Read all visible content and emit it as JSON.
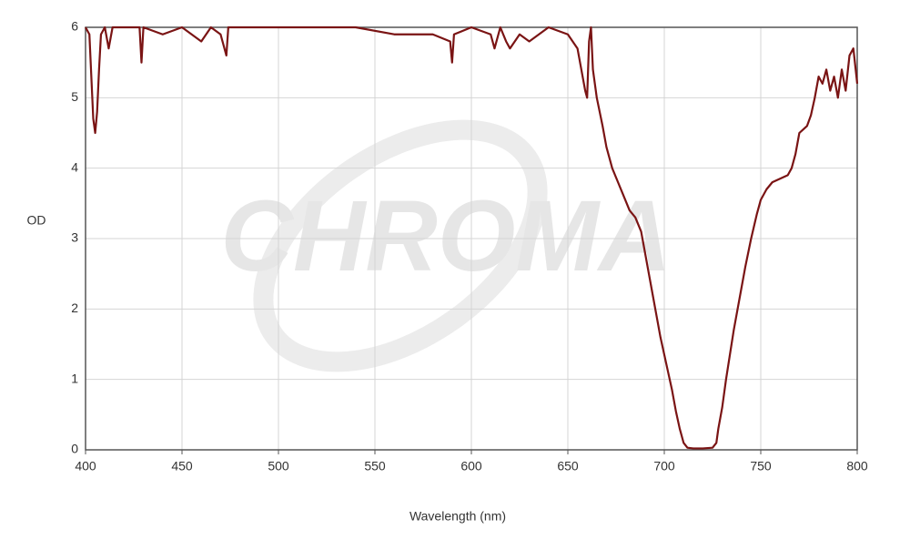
{
  "chart_data": {
    "type": "line",
    "xlabel": "Wavelength (nm)",
    "ylabel": "OD",
    "watermark": "CHROMA",
    "color": "#7a1414",
    "grid": true,
    "xlim": [
      400,
      800
    ],
    "xticks": [
      400,
      450,
      500,
      550,
      600,
      650,
      700,
      750,
      800
    ],
    "ylim": [
      0,
      6
    ],
    "yticks": [
      0,
      1,
      2,
      3,
      4,
      5,
      6
    ],
    "x": [
      400,
      402,
      403,
      404,
      405,
      406,
      407,
      408,
      410,
      412,
      414,
      420,
      428,
      429,
      430,
      440,
      450,
      460,
      465,
      470,
      473,
      474,
      480,
      500,
      520,
      540,
      560,
      580,
      589,
      590,
      591,
      600,
      610,
      612,
      615,
      618,
      620,
      625,
      630,
      640,
      650,
      655,
      657,
      659,
      660,
      661,
      662,
      663,
      665,
      668,
      670,
      673,
      676,
      679,
      682,
      685,
      688,
      690,
      692,
      694,
      696,
      698,
      700,
      702,
      704,
      706,
      708,
      710,
      712,
      715,
      720,
      725,
      727,
      728,
      730,
      732,
      734,
      736,
      738,
      740,
      742,
      745,
      748,
      750,
      753,
      756,
      760,
      764,
      766,
      768,
      770,
      772,
      774,
      776,
      778,
      780,
      782,
      784,
      786,
      788,
      790,
      792,
      794,
      796,
      798,
      800
    ],
    "values": [
      6,
      5.9,
      5.3,
      4.7,
      4.5,
      4.8,
      5.4,
      5.9,
      6,
      5.7,
      6,
      6,
      6,
      5.5,
      6,
      5.9,
      6,
      5.8,
      6,
      5.9,
      5.6,
      6,
      6,
      6,
      6,
      6,
      5.9,
      5.9,
      5.8,
      5.5,
      5.9,
      6,
      5.9,
      5.7,
      6,
      5.8,
      5.7,
      5.9,
      5.8,
      6,
      5.9,
      5.7,
      5.4,
      5.1,
      5.0,
      5.8,
      6,
      5.4,
      5.0,
      4.6,
      4.3,
      4.0,
      3.8,
      3.6,
      3.4,
      3.3,
      3.1,
      2.8,
      2.5,
      2.2,
      1.9,
      1.6,
      1.35,
      1.1,
      0.85,
      0.55,
      0.3,
      0.1,
      0.03,
      0.02,
      0.02,
      0.03,
      0.1,
      0.3,
      0.6,
      1.0,
      1.35,
      1.7,
      2.0,
      2.3,
      2.6,
      3.0,
      3.35,
      3.55,
      3.7,
      3.8,
      3.85,
      3.9,
      4.0,
      4.2,
      4.5,
      4.55,
      4.6,
      4.75,
      5.0,
      5.3,
      5.2,
      5.4,
      5.1,
      5.3,
      5.0,
      5.4,
      5.1,
      5.6,
      5.7,
      5.2
    ]
  }
}
